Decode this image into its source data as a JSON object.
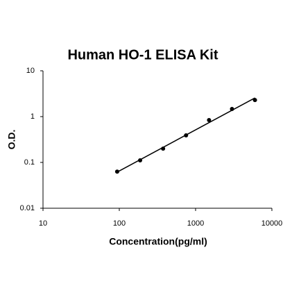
{
  "chart_data": {
    "type": "scatter",
    "title": "Human HO-1 ELISA Kit",
    "x_label": "Concentration(pg/ml)",
    "y_label": "O.D.",
    "x": [
      93.75,
      187.5,
      375,
      750,
      1500,
      3000,
      6000
    ],
    "values": [
      0.063,
      0.111,
      0.2,
      0.39,
      0.84,
      1.47,
      2.3
    ],
    "color": "#000000",
    "xlog": true,
    "ylog": true,
    "xlim": [
      10,
      10000
    ],
    "ylim": [
      0.01,
      10
    ],
    "xticks": [
      10,
      100,
      1000,
      10000
    ],
    "yticks": [
      0.01,
      0.1,
      1,
      10
    ],
    "trendline": true
  }
}
